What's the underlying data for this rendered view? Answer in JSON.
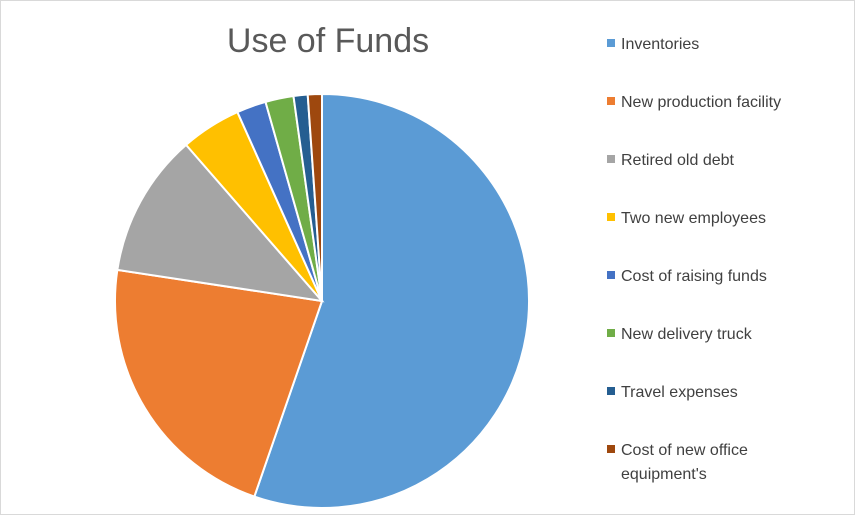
{
  "chart_data": {
    "type": "pie",
    "title": "Use of Funds",
    "categories": [
      "Inventories",
      "New production facility",
      "Retired old debt",
      "Two new employees",
      "Cost of raising funds",
      "New delivery truck",
      "Travel expenses",
      "Cost of new office equipment's"
    ],
    "values": [
      55.3,
      22.1,
      11.2,
      4.7,
      2.3,
      2.2,
      1.1,
      1.1
    ],
    "colors": [
      "#5b9bd5",
      "#ed7d31",
      "#a5a5a5",
      "#ffc000",
      "#4472c4",
      "#70ad47",
      "#255e91",
      "#9e480e"
    ],
    "legend": "right"
  }
}
